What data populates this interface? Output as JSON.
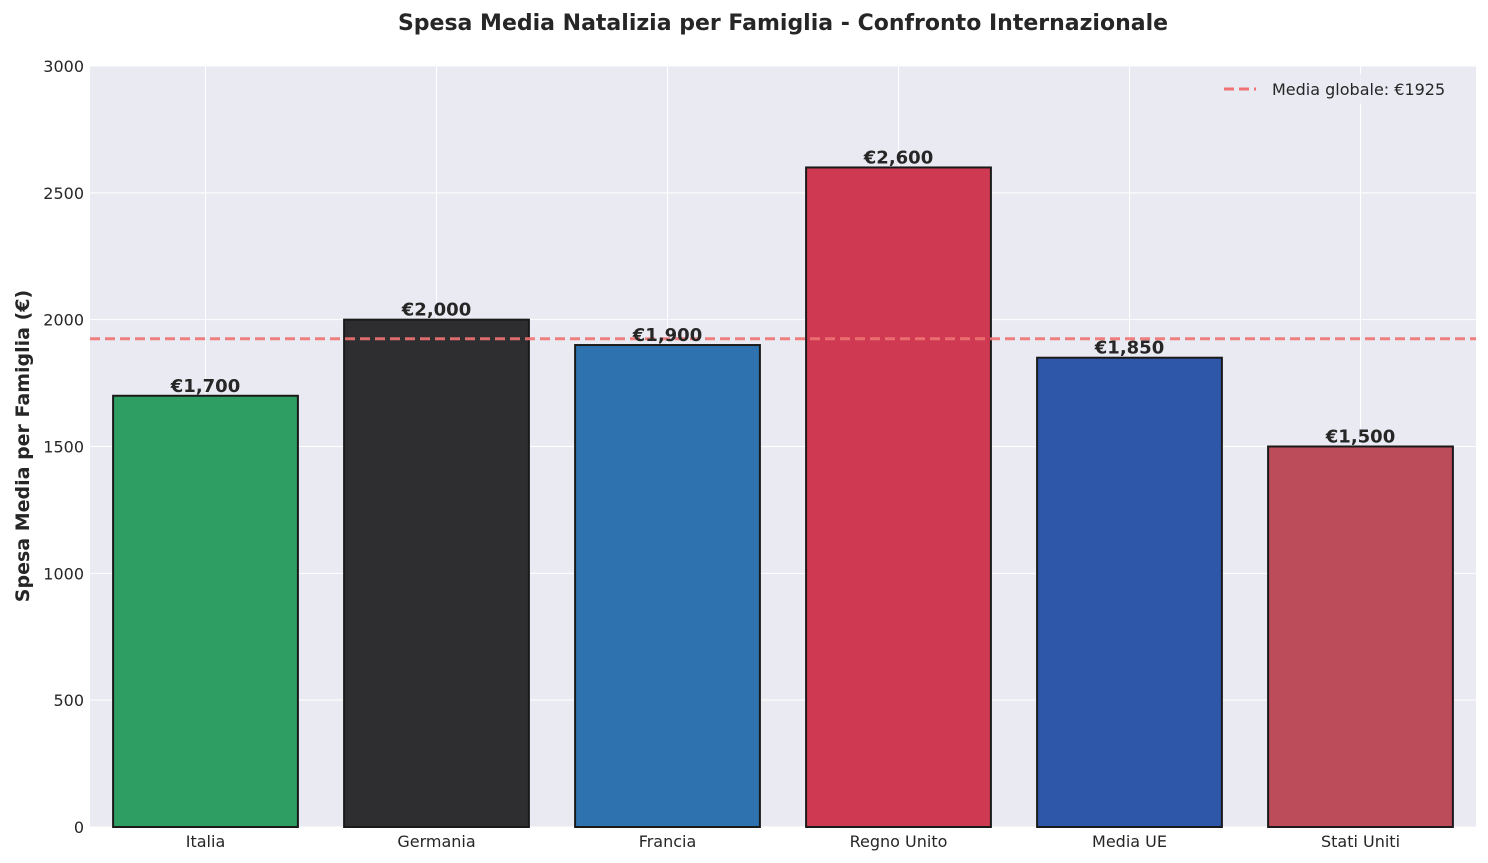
{
  "chart_data": {
    "type": "bar",
    "title": "Spesa Media Natalizia per Famiglia - Confronto Internazionale",
    "xlabel": "",
    "ylabel": "Spesa Media per Famiglia (€)",
    "categories": [
      "Italia",
      "Germania",
      "Francia",
      "Regno Unito",
      "Media UE",
      "Stati Uniti"
    ],
    "values": [
      1700,
      2000,
      1900,
      2600,
      1850,
      1500
    ],
    "value_labels": [
      "€1,700",
      "€2,000",
      "€1,900",
      "€2,600",
      "€1,850",
      "€1,500"
    ],
    "colors": [
      "#2e9e63",
      "#2e2e30",
      "#2f72b0",
      "#cf3a52",
      "#2f57a9",
      "#bc4c5a"
    ],
    "ylim": [
      0,
      3000
    ],
    "yticks": [
      0,
      500,
      1000,
      1500,
      2000,
      2500,
      3000
    ],
    "reference_line": {
      "value": 1925,
      "label": "Media globale: €1925",
      "color": "#f07373",
      "style": "dashed"
    },
    "legend_position": "top-right",
    "grid": true
  }
}
